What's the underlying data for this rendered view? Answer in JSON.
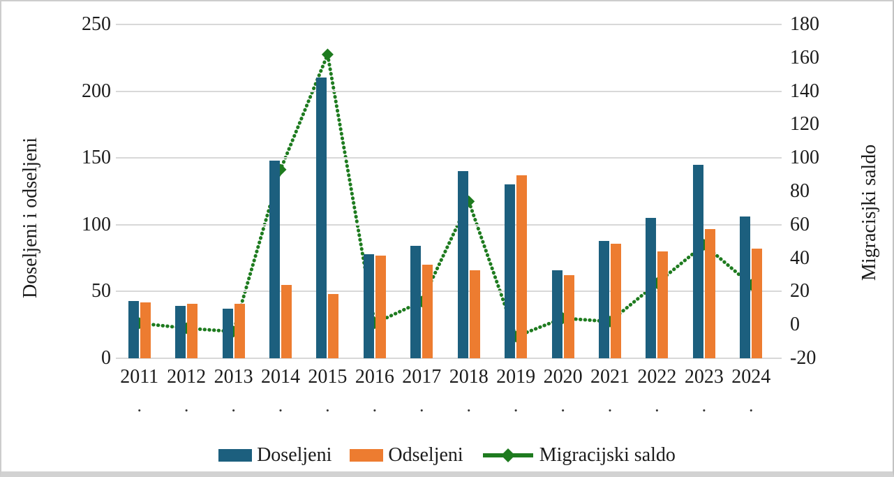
{
  "chart_data": {
    "type": "bar+line combo",
    "categories": [
      "2011",
      "2012",
      "2013",
      "2014",
      "2015",
      "2016",
      "2017",
      "2018",
      "2019",
      "2020",
      "2021",
      "2022",
      "2023",
      "2024"
    ],
    "series": [
      {
        "name": "Doseljeni",
        "type": "bar",
        "axis": "left",
        "color": "#1C5F7E",
        "values": [
          43,
          39,
          37,
          148,
          210,
          78,
          84,
          140,
          130,
          66,
          88,
          105,
          145,
          106
        ]
      },
      {
        "name": "Odseljeni",
        "type": "bar",
        "axis": "left",
        "color": "#ED7C30",
        "values": [
          42,
          41,
          41,
          55,
          48,
          77,
          70,
          66,
          137,
          62,
          86,
          80,
          97,
          82
        ]
      },
      {
        "name": "Migracijski saldo",
        "type": "line",
        "axis": "right",
        "color": "#1E7B1F",
        "values": [
          1,
          -2,
          -4,
          93,
          162,
          1,
          14,
          74,
          -7,
          4,
          2,
          25,
          48,
          24
        ]
      }
    ],
    "left_axis": {
      "title": "Doseljeni i odseljeni",
      "min": 0,
      "max": 250,
      "ticks": [
        0,
        50,
        100,
        150,
        200,
        250
      ]
    },
    "right_axis": {
      "title": "Migracisjki saldo",
      "min": -20,
      "max": 180,
      "ticks": [
        -20,
        0,
        20,
        40,
        60,
        80,
        100,
        120,
        140,
        160,
        180
      ]
    },
    "x_axis": {
      "minor_tick_label": "."
    },
    "grid": true,
    "gridline_color": "#d8d8d8",
    "legend_position": "bottom"
  }
}
